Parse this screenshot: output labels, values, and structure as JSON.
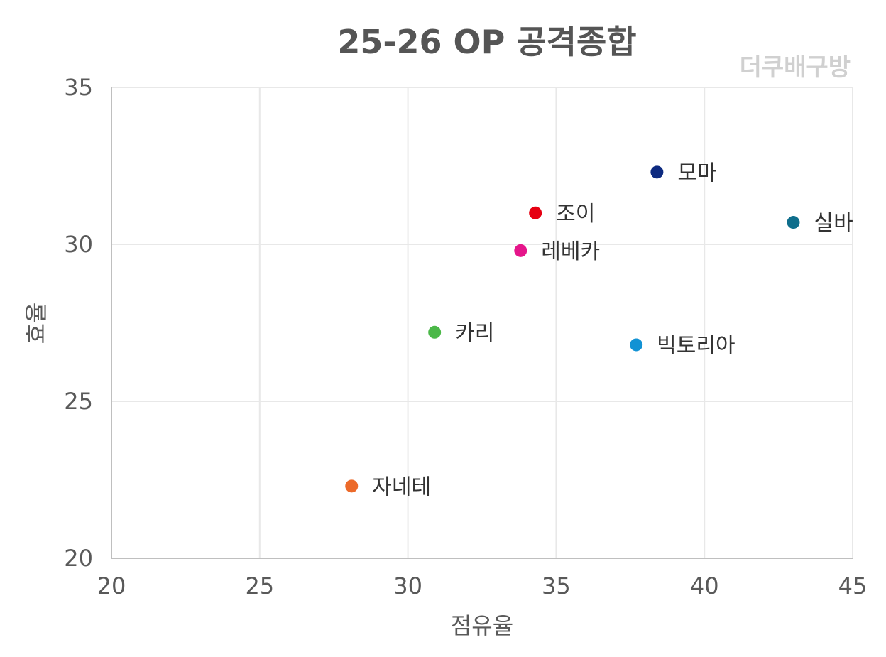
{
  "chart_data": {
    "type": "scatter",
    "title": "25-26 OP 공격종합",
    "watermark": "더쿠배구방",
    "xlabel": "점유율",
    "ylabel": "효율",
    "xlim": [
      20,
      45
    ],
    "ylim": [
      20,
      35
    ],
    "xticks": [
      20,
      25,
      30,
      35,
      40,
      45
    ],
    "yticks": [
      20,
      25,
      30,
      35
    ],
    "grid": true,
    "points": [
      {
        "label": "모마",
        "x": 38.4,
        "y": 32.3,
        "color": "#0d2a80"
      },
      {
        "label": "조이",
        "x": 34.3,
        "y": 31.0,
        "color": "#e60012"
      },
      {
        "label": "실바",
        "x": 43.0,
        "y": 30.7,
        "color": "#0f6e8c"
      },
      {
        "label": "레베카",
        "x": 33.8,
        "y": 29.8,
        "color": "#e5158a"
      },
      {
        "label": "카리",
        "x": 30.9,
        "y": 27.2,
        "color": "#4bb848"
      },
      {
        "label": "빅토리아",
        "x": 37.7,
        "y": 26.8,
        "color": "#1292d4"
      },
      {
        "label": "자네테",
        "x": 28.1,
        "y": 22.3,
        "color": "#ec6a2a"
      }
    ]
  }
}
